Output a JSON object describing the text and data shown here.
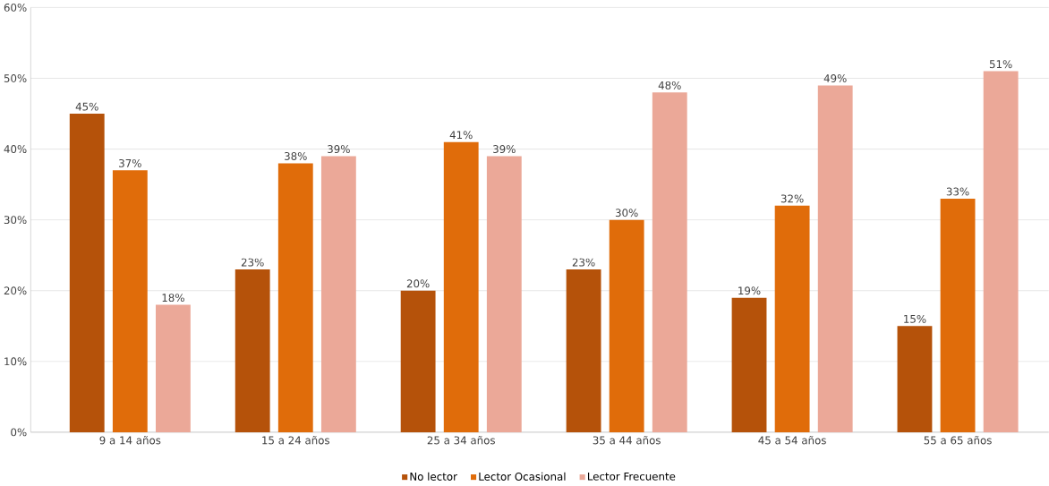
{
  "chart_data": {
    "type": "bar",
    "categories": [
      "9 a 14 años",
      "15 a 24 años",
      "25 a 34 años",
      "35 a 44 años",
      "45 a 54 años",
      "55 a 65 años"
    ],
    "series": [
      {
        "name": "No lector",
        "color": "#b5520a",
        "values": [
          45,
          23,
          20,
          23,
          19,
          15
        ],
        "value_labels": [
          "45%",
          "23%",
          "20%",
          "23%",
          "19%",
          "15%"
        ]
      },
      {
        "name": "Lector Ocasional",
        "color": "#e06c0a",
        "values": [
          37,
          38,
          41,
          30,
          32,
          33
        ],
        "value_labels": [
          "37%",
          "38%",
          "41%",
          "30%",
          "32%",
          "33%"
        ]
      },
      {
        "name": "Lector Frecuente",
        "color": "#eba898",
        "values": [
          18,
          39,
          39,
          48,
          49,
          51
        ],
        "value_labels": [
          "18%",
          "39%",
          "39%",
          "48%",
          "49%",
          "51%"
        ]
      }
    ],
    "ylim": [
      0,
      60
    ],
    "yticks": [
      {
        "value": 0,
        "label": "0%"
      },
      {
        "value": 10,
        "label": "10%"
      },
      {
        "value": 20,
        "label": "20%"
      },
      {
        "value": 30,
        "label": "30%"
      },
      {
        "value": 40,
        "label": "40%"
      },
      {
        "value": 50,
        "label": "50%"
      },
      {
        "value": 60,
        "label": "60%"
      }
    ],
    "grid": "y",
    "legend": "bottom"
  }
}
